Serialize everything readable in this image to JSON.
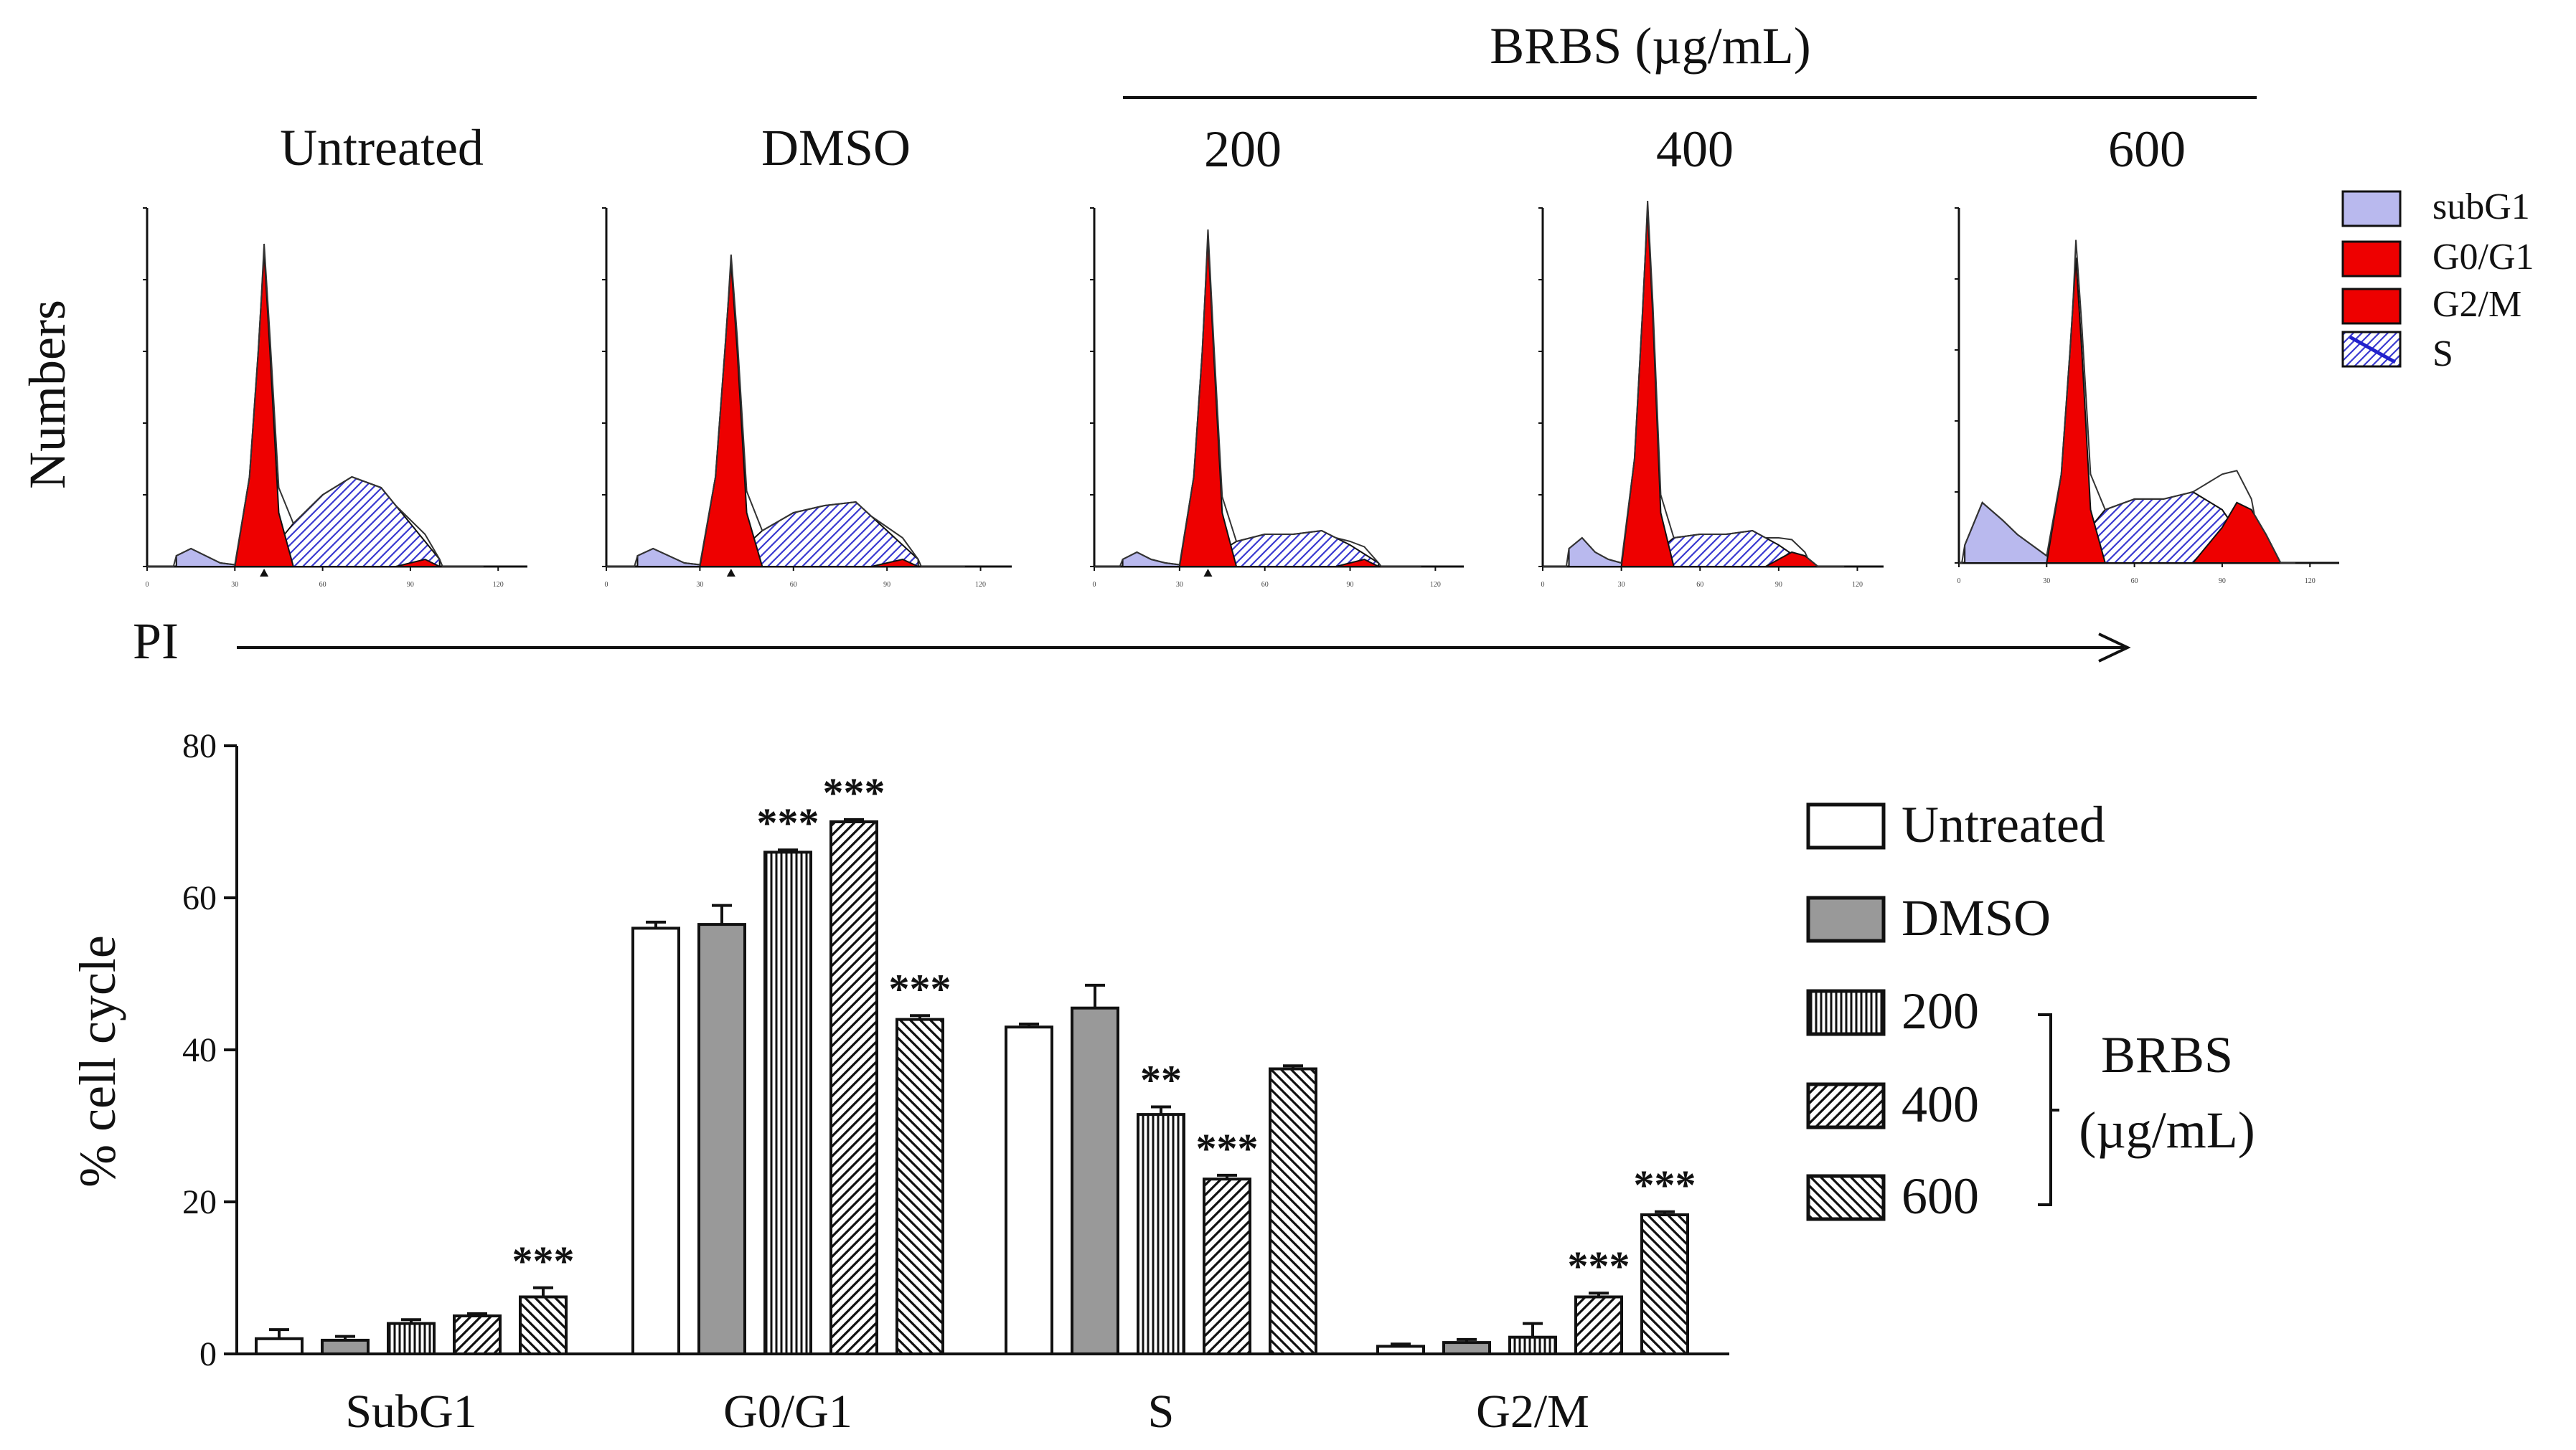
{
  "header": {
    "group_label": "BRBS (µg/mL)",
    "sample_labels": [
      "Untreated",
      "DMSO",
      "200",
      "400",
      "600"
    ]
  },
  "axis_labels": {
    "histogram_y": "Numbers",
    "histogram_x": "PI",
    "bar_y": "% cell cycle"
  },
  "histogram_legend": [
    {
      "label": "subG1",
      "fill": "#b9b9ee"
    },
    {
      "label": "G0/G1",
      "fill": "#ee0000"
    },
    {
      "label": "G2/M",
      "fill": "#ee0000"
    },
    {
      "label": "S",
      "fill": "#ffffff"
    }
  ],
  "histogram_tick_labels": [
    "0",
    "30",
    "60",
    "90",
    "120"
  ],
  "chart_data": [
    {
      "type": "area",
      "title": "Untreated",
      "xlabel": "PI",
      "ylabel": "Numbers",
      "xlim": [
        0,
        130
      ],
      "series": [
        {
          "name": "subG1",
          "x": [
            10,
            15,
            20,
            25,
            30,
            35
          ],
          "values": [
            0.03,
            0.05,
            0.03,
            0.01,
            0.005,
            0
          ]
        },
        {
          "name": "G0/G1",
          "x": [
            30,
            35,
            38,
            40,
            42,
            45,
            50
          ],
          "values": [
            0,
            0.25,
            0.6,
            0.88,
            0.6,
            0.15,
            0
          ]
        },
        {
          "name": "S",
          "x": [
            40,
            50,
            60,
            70,
            80,
            90,
            100
          ],
          "values": [
            0.02,
            0.12,
            0.2,
            0.25,
            0.22,
            0.12,
            0.02
          ]
        },
        {
          "name": "G2/M",
          "x": [
            85,
            95,
            100
          ],
          "values": [
            0,
            0.02,
            0
          ]
        }
      ]
    },
    {
      "type": "area",
      "title": "DMSO",
      "xlabel": "PI",
      "ylabel": "Numbers",
      "xlim": [
        0,
        130
      ],
      "series": [
        {
          "name": "subG1",
          "x": [
            10,
            15,
            20,
            25,
            30,
            35
          ],
          "values": [
            0.03,
            0.05,
            0.03,
            0.01,
            0.005,
            0
          ]
        },
        {
          "name": "G0/G1",
          "x": [
            30,
            35,
            38,
            40,
            42,
            45,
            50
          ],
          "values": [
            0,
            0.25,
            0.6,
            0.85,
            0.6,
            0.15,
            0
          ]
        },
        {
          "name": "S",
          "x": [
            40,
            50,
            60,
            70,
            80,
            90,
            100
          ],
          "values": [
            0.02,
            0.1,
            0.15,
            0.17,
            0.18,
            0.1,
            0.02
          ]
        },
        {
          "name": "G2/M",
          "x": [
            85,
            95,
            100
          ],
          "values": [
            0,
            0.02,
            0
          ]
        }
      ]
    },
    {
      "type": "area",
      "title": "200",
      "xlabel": "PI",
      "ylabel": "Numbers",
      "xlim": [
        0,
        130
      ],
      "series": [
        {
          "name": "subG1",
          "x": [
            10,
            15,
            20,
            25,
            30,
            35
          ],
          "values": [
            0.02,
            0.04,
            0.02,
            0.01,
            0.005,
            0
          ]
        },
        {
          "name": "G0/G1",
          "x": [
            30,
            35,
            38,
            40,
            42,
            45,
            50
          ],
          "values": [
            0,
            0.25,
            0.6,
            0.92,
            0.6,
            0.15,
            0
          ]
        },
        {
          "name": "S",
          "x": [
            40,
            50,
            60,
            70,
            80,
            90,
            100
          ],
          "values": [
            0.02,
            0.07,
            0.09,
            0.09,
            0.1,
            0.06,
            0.01
          ]
        },
        {
          "name": "G2/M",
          "x": [
            85,
            95,
            100
          ],
          "values": [
            0,
            0.02,
            0
          ]
        }
      ]
    },
    {
      "type": "area",
      "title": "400",
      "xlabel": "PI",
      "ylabel": "Numbers",
      "xlim": [
        0,
        130
      ],
      "series": [
        {
          "name": "subG1",
          "x": [
            10,
            15,
            20,
            25,
            30,
            35
          ],
          "values": [
            0.05,
            0.08,
            0.04,
            0.02,
            0.01,
            0
          ]
        },
        {
          "name": "G0/G1",
          "x": [
            30,
            35,
            38,
            40,
            42,
            45,
            50
          ],
          "values": [
            0,
            0.3,
            0.7,
            1.0,
            0.7,
            0.15,
            0
          ]
        },
        {
          "name": "S",
          "x": [
            40,
            50,
            60,
            70,
            80,
            90,
            100
          ],
          "values": [
            0.02,
            0.08,
            0.09,
            0.09,
            0.1,
            0.06,
            0.01
          ]
        },
        {
          "name": "G2/M",
          "x": [
            85,
            95,
            100,
            105
          ],
          "values": [
            0,
            0.04,
            0.03,
            0
          ]
        }
      ]
    },
    {
      "type": "area",
      "title": "600",
      "xlabel": "PI",
      "ylabel": "Numbers",
      "xlim": [
        0,
        130
      ],
      "series": [
        {
          "name": "subG1",
          "x": [
            2,
            8,
            15,
            20,
            25,
            30,
            35
          ],
          "values": [
            0.05,
            0.17,
            0.12,
            0.08,
            0.05,
            0.02,
            0
          ]
        },
        {
          "name": "G0/G1",
          "x": [
            30,
            35,
            38,
            40,
            42,
            45,
            50
          ],
          "values": [
            0,
            0.25,
            0.6,
            0.86,
            0.6,
            0.15,
            0
          ]
        },
        {
          "name": "S",
          "x": [
            40,
            50,
            60,
            70,
            80,
            90,
            100
          ],
          "values": [
            0.05,
            0.15,
            0.18,
            0.18,
            0.2,
            0.15,
            0.03
          ]
        },
        {
          "name": "G2/M",
          "x": [
            80,
            90,
            95,
            100,
            105,
            110
          ],
          "values": [
            0,
            0.1,
            0.17,
            0.15,
            0.08,
            0
          ]
        }
      ]
    },
    {
      "type": "bar",
      "title": "",
      "xlabel": "",
      "ylabel": "% cell cycle",
      "ylim": [
        0,
        80
      ],
      "yticks": [
        0,
        20,
        40,
        60,
        80
      ],
      "categories": [
        "SubG1",
        "G0/G1",
        "S",
        "G2/M"
      ],
      "series": [
        {
          "name": "Untreated",
          "values": [
            2,
            56,
            43,
            1
          ],
          "errors": [
            1.2,
            0.8,
            0.4,
            0.3
          ]
        },
        {
          "name": "DMSO",
          "values": [
            1.8,
            56.5,
            45.5,
            1.5
          ],
          "errors": [
            0.5,
            2.5,
            3.0,
            0.4
          ]
        },
        {
          "name": "200",
          "values": [
            4,
            66,
            31.5,
            2.2
          ],
          "errors": [
            0.5,
            0.3,
            1.0,
            1.8
          ]
        },
        {
          "name": "400",
          "values": [
            5,
            70,
            23,
            7.5
          ],
          "errors": [
            0.3,
            0.3,
            0.5,
            0.5
          ]
        },
        {
          "name": "600",
          "values": [
            7.5,
            44,
            37.5,
            18.3
          ],
          "errors": [
            1.2,
            0.5,
            0.4,
            0.4
          ]
        }
      ],
      "significance": [
        [
          null,
          null,
          null,
          null,
          "***"
        ],
        [
          null,
          null,
          "***",
          "***",
          "***"
        ],
        [
          null,
          null,
          "**",
          "***",
          null
        ],
        [
          null,
          null,
          null,
          "***",
          "***"
        ]
      ],
      "legend": {
        "items": [
          "Untreated",
          "DMSO",
          "200",
          "400",
          "600"
        ],
        "bracket_label_line1": "BRBS",
        "bracket_label_line2": "(µg/mL)"
      }
    }
  ]
}
